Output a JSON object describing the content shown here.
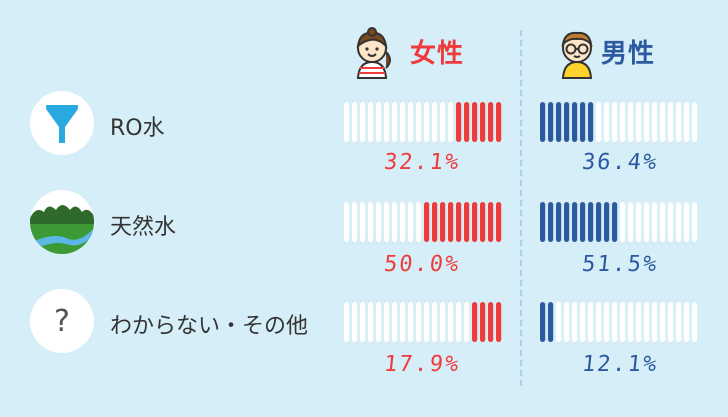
{
  "chart_data": {
    "type": "bar",
    "categories": [
      "RO水",
      "天然水",
      "わからない・その他"
    ],
    "series": [
      {
        "name": "女性",
        "values": [
          32.1,
          50.0,
          17.9
        ],
        "color": "#ef3b3b"
      },
      {
        "name": "男性",
        "values": [
          36.4,
          51.5,
          12.1
        ],
        "color": "#2c5aa0"
      }
    ],
    "value_labels": {
      "女性": [
        "32.1%",
        "50.0%",
        "17.9%"
      ],
      "男性": [
        "36.4%",
        "51.5%",
        "12.1%"
      ]
    },
    "ylim": [
      0,
      100
    ],
    "segments_per_bar": 20,
    "empty_segment_color": "#ffffff",
    "icons": [
      "funnel-icon",
      "landscape-icon",
      "question-icon",
      "female-avatar-icon",
      "male-avatar-icon"
    ]
  }
}
